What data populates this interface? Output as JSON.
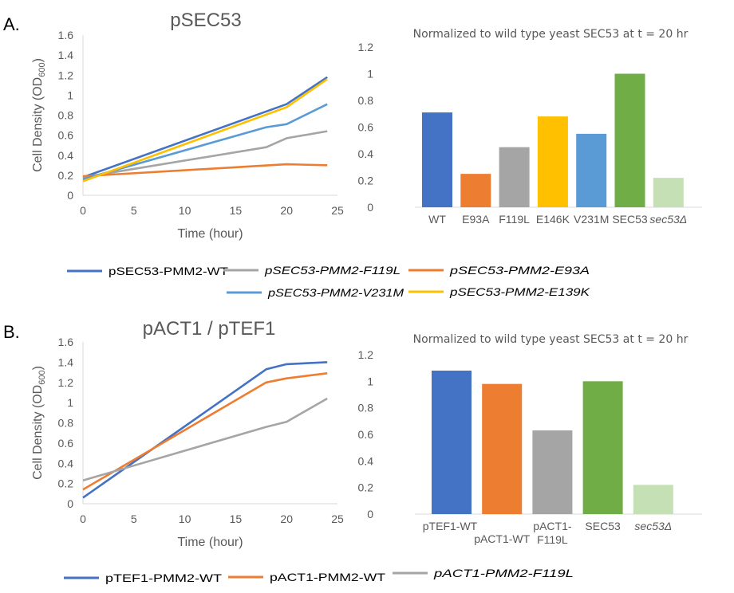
{
  "panels": {
    "a": {
      "label": "A."
    },
    "b": {
      "label": "B."
    }
  },
  "chart_data": [
    {
      "id": "a-line",
      "type": "line",
      "title": "pSEC53",
      "xlabel": "Time (hour)",
      "ylabel_main": "Cell Density (OD",
      "ylabel_sub": "600",
      "ylabel_close": ")",
      "xlim": [
        0,
        25
      ],
      "ylim": [
        0,
        1.6
      ],
      "xticks": [
        "0",
        "5",
        "10",
        "15",
        "20",
        "25"
      ],
      "yticks": [
        "0",
        "0.2",
        "0.4",
        "0.6",
        "0.8",
        "1",
        "1.2",
        "1.4",
        "1.6"
      ],
      "grid": false,
      "series": [
        {
          "name": "pSEC53-PMM2-WT",
          "italic": false,
          "color": "#4472c4",
          "x": [
            0,
            20,
            24
          ],
          "y": [
            0.18,
            0.91,
            1.18
          ]
        },
        {
          "name": "pSEC53-PMM2-F119L",
          "italic": true,
          "color": "#a5a5a5",
          "x": [
            0,
            18,
            20,
            24
          ],
          "y": [
            0.18,
            0.48,
            0.57,
            0.64
          ]
        },
        {
          "name": "pSEC53-PMM2-E93A",
          "italic": true,
          "color": "#ed7d31",
          "x": [
            0,
            20,
            24
          ],
          "y": [
            0.19,
            0.31,
            0.3
          ]
        },
        {
          "name": "pSEC53-PMM2-V231M",
          "italic": true,
          "color": "#5b9bd5",
          "x": [
            0,
            18,
            20,
            24
          ],
          "y": [
            0.16,
            0.68,
            0.71,
            0.91
          ]
        },
        {
          "name": "pSEC53-PMM2-E139K",
          "italic": true,
          "color": "#ffc000",
          "x": [
            0,
            20,
            24
          ],
          "y": [
            0.14,
            0.88,
            1.16
          ]
        }
      ]
    },
    {
      "id": "a-bar",
      "type": "bar",
      "title": "Normalized to wild type yeast SEC53 at t = 20 hr",
      "ylim": [
        0,
        1.2
      ],
      "yticks": [
        "0",
        "0.2",
        "0.4",
        "0.6",
        "0.8",
        "1",
        "1.2"
      ],
      "categories": [
        "WT",
        "E93A",
        "F119L",
        "E146K",
        "V231M",
        "SEC53",
        "sec53Δ"
      ],
      "category_italic": [
        false,
        false,
        false,
        false,
        false,
        false,
        true
      ],
      "values": [
        0.71,
        0.25,
        0.45,
        0.68,
        0.55,
        1.0,
        0.22
      ],
      "colors": [
        "#4472c4",
        "#ed7d31",
        "#a5a5a5",
        "#ffc000",
        "#5b9bd5",
        "#70ad47",
        "#c5e0b4"
      ]
    },
    {
      "id": "b-line",
      "type": "line",
      "title": "pACT1 / pTEF1",
      "xlabel": "Time (hour)",
      "ylabel_main": "Cell Density (OD",
      "ylabel_sub": "600",
      "ylabel_close": ")",
      "xlim": [
        0,
        25
      ],
      "ylim": [
        0,
        1.6
      ],
      "xticks": [
        "0",
        "5",
        "10",
        "15",
        "20",
        "25"
      ],
      "yticks": [
        "0",
        "0.2",
        "0.4",
        "0.6",
        "0.8",
        "1",
        "1.2",
        "1.4",
        "1.6"
      ],
      "grid": false,
      "series": [
        {
          "name": "pTEF1-PMM2-WT",
          "italic": false,
          "color": "#4472c4",
          "x": [
            0,
            18,
            20,
            24
          ],
          "y": [
            0.06,
            1.33,
            1.38,
            1.4
          ]
        },
        {
          "name": "pACT1-PMM2-WT",
          "italic": false,
          "color": "#ed7d31",
          "x": [
            0,
            18,
            20,
            24
          ],
          "y": [
            0.14,
            1.2,
            1.24,
            1.29
          ]
        },
        {
          "name": "pACT1-PMM2-F119L",
          "italic": true,
          "color": "#a5a5a5",
          "x": [
            0,
            18,
            20,
            24
          ],
          "y": [
            0.23,
            0.76,
            0.81,
            1.04
          ]
        }
      ]
    },
    {
      "id": "b-bar",
      "type": "bar",
      "title": "Normalized to wild type yeast SEC53 at t = 20 hr",
      "ylim": [
        0,
        1.2
      ],
      "yticks": [
        "0",
        "0.2",
        "0.4",
        "0.6",
        "0.8",
        "1",
        "1.2"
      ],
      "categories": [
        "pTEF1-WT",
        "pACT1-WT",
        "pACT1-F119L",
        "SEC53",
        "sec53Δ"
      ],
      "category_lines": [
        [
          "pTEF1-WT"
        ],
        [
          "pACT1-WT"
        ],
        [
          "pACT1-",
          "F119L"
        ],
        [
          "SEC53"
        ],
        [
          "sec53Δ"
        ]
      ],
      "category_italic": [
        false,
        false,
        false,
        false,
        true
      ],
      "values": [
        1.08,
        0.98,
        0.63,
        1.0,
        0.22
      ],
      "colors": [
        "#4472c4",
        "#ed7d31",
        "#a5a5a5",
        "#70ad47",
        "#c5e0b4"
      ]
    }
  ]
}
